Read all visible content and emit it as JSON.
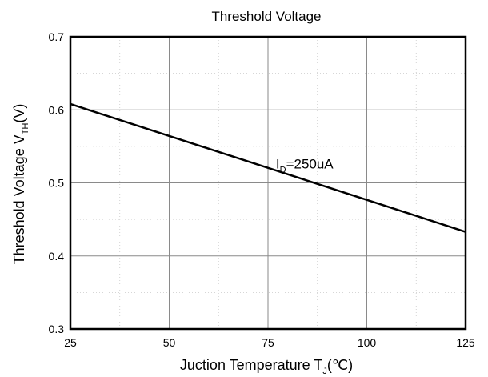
{
  "chart_data": {
    "type": "line",
    "title": "Threshold Voltage",
    "xlabel": {
      "main": "Juction Temperature T",
      "sub": "J",
      "suffix": "(℃)"
    },
    "ylabel": {
      "main": "Threshold Voltage V",
      "sub": "TH",
      "suffix": "(V)"
    },
    "xlim": [
      25,
      125
    ],
    "ylim": [
      0.3,
      0.7
    ],
    "xticks": [
      25,
      50,
      75,
      100,
      125
    ],
    "yticks": [
      0.3,
      0.4,
      0.5,
      0.6,
      0.7
    ],
    "xtick_labels": [
      "25",
      "50",
      "75",
      "100",
      "125"
    ],
    "ytick_labels": [
      "0.3",
      "0.4",
      "0.5",
      "0.6",
      "0.7"
    ],
    "grid": true,
    "series": [
      {
        "x": [
          25,
          125
        ],
        "y": [
          0.608,
          0.433
        ]
      }
    ],
    "annotation": {
      "main": "I",
      "sub": "D",
      "suffix": "=250uA",
      "x": 77,
      "y": 0.52
    }
  }
}
